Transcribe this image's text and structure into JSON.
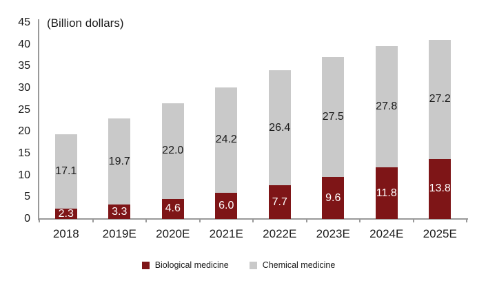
{
  "title": "(Billion dollars)",
  "colors": {
    "biological": "#7E1517",
    "chemical": "#C9C9C9",
    "axis": "#999999",
    "text": "#1A1A1A",
    "bio_label": "#FFFFFF"
  },
  "legend": [
    {
      "key": "biological",
      "label": "Biological medicine"
    },
    {
      "key": "chemical",
      "label": "Chemical medicine"
    }
  ],
  "chart_data": {
    "type": "bar",
    "stacked": true,
    "title": "(Billion dollars)",
    "categories": [
      "2018",
      "2019E",
      "2020E",
      "2021E",
      "2022E",
      "2023E",
      "2024E",
      "2025E"
    ],
    "series": [
      {
        "name": "Biological medicine",
        "color": "#7E1517",
        "values": [
          2.3,
          3.3,
          4.6,
          6.0,
          7.7,
          9.6,
          11.8,
          13.8
        ]
      },
      {
        "name": "Chemical medicine",
        "color": "#C9C9C9",
        "values": [
          17.1,
          19.7,
          22.0,
          24.2,
          26.4,
          27.5,
          27.8,
          27.2
        ]
      }
    ],
    "totals": [
      19.4,
      23.0,
      26.6,
      30.2,
      34.1,
      37.1,
      39.6,
      41.0
    ],
    "xlabel": "",
    "ylabel": "",
    "ylim": [
      0,
      45
    ],
    "yticks": [
      0,
      5,
      10,
      15,
      20,
      25,
      30,
      35,
      40,
      45
    ],
    "grid": false,
    "data_labels": true,
    "legend_position": "bottom"
  }
}
